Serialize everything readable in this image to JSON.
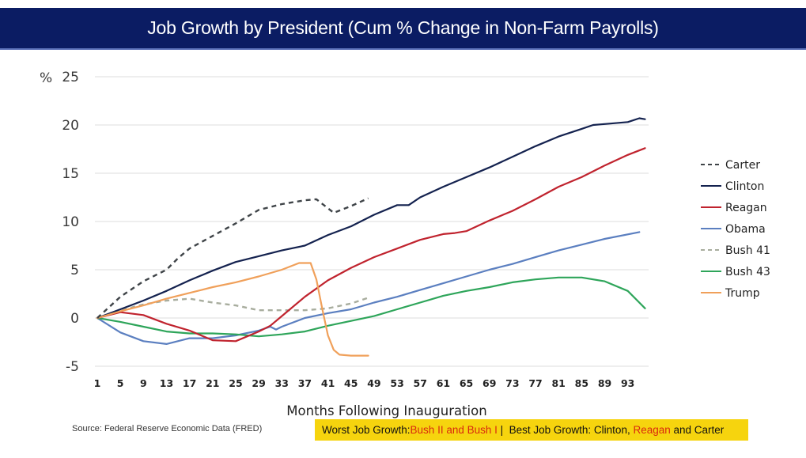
{
  "header": {
    "title": "Job Growth by President (Cum % Change in Non-Farm Payrolls)"
  },
  "chart_data": {
    "type": "line",
    "title": "Job Growth by President (Cum % Change in Non-Farm Payrolls)",
    "xlabel": "Months Following Inauguration",
    "ylabel": "%",
    "xlim": [
      1,
      96
    ],
    "ylim": [
      -5,
      25
    ],
    "grid": true,
    "legend_position": "right",
    "x_ticks": [
      "1",
      "5",
      "9",
      "13",
      "17",
      "21",
      "25",
      "29",
      "33",
      "37",
      "41",
      "45",
      "49",
      "53",
      "57",
      "61",
      "65",
      "69",
      "73",
      "77",
      "81",
      "85",
      "89",
      "93"
    ],
    "y_ticks": [
      "25",
      "20",
      "15",
      "10",
      "5",
      "0",
      "-5"
    ],
    "series": [
      {
        "name": "Carter",
        "color": "#3f4448",
        "dash": true,
        "x": [
          1,
          5,
          9,
          13,
          15,
          17,
          21,
          25,
          29,
          33,
          37,
          39,
          42,
          45,
          48
        ],
        "y": [
          0,
          2.2,
          3.8,
          5.0,
          6.2,
          7.2,
          8.5,
          9.8,
          11.2,
          11.8,
          12.2,
          12.3,
          10.9,
          11.6,
          12.4
        ]
      },
      {
        "name": "Clinton",
        "color": "#14224f",
        "dash": false,
        "x": [
          1,
          5,
          9,
          13,
          17,
          21,
          25,
          29,
          33,
          37,
          41,
          45,
          49,
          53,
          55,
          57,
          61,
          65,
          69,
          73,
          77,
          81,
          85,
          87,
          89,
          93,
          95,
          96
        ],
        "y": [
          0,
          0.9,
          1.8,
          2.8,
          3.9,
          4.9,
          5.8,
          6.4,
          7.0,
          7.5,
          8.6,
          9.5,
          10.7,
          11.7,
          11.7,
          12.5,
          13.6,
          14.6,
          15.6,
          16.7,
          17.8,
          18.8,
          19.6,
          20.0,
          20.1,
          20.3,
          20.7,
          20.6
        ]
      },
      {
        "name": "Reagan",
        "color": "#c0232e",
        "dash": false,
        "x": [
          1,
          5,
          9,
          13,
          17,
          21,
          25,
          29,
          31,
          33,
          37,
          41,
          45,
          49,
          53,
          57,
          61,
          63,
          65,
          69,
          73,
          77,
          81,
          85,
          89,
          93,
          96
        ],
        "y": [
          0,
          0.6,
          0.3,
          -0.6,
          -1.3,
          -2.3,
          -2.4,
          -1.4,
          -0.8,
          0.2,
          2.2,
          3.9,
          5.2,
          6.3,
          7.2,
          8.1,
          8.7,
          8.8,
          9.0,
          10.1,
          11.1,
          12.3,
          13.6,
          14.6,
          15.8,
          16.9,
          17.6
        ]
      },
      {
        "name": "Obama",
        "color": "#5b7fc0",
        "dash": false,
        "x": [
          1,
          5,
          9,
          13,
          17,
          21,
          25,
          29,
          31,
          32,
          33,
          37,
          41,
          45,
          49,
          53,
          57,
          61,
          65,
          69,
          73,
          77,
          81,
          85,
          89,
          95
        ],
        "y": [
          0,
          -1.5,
          -2.4,
          -2.7,
          -2.1,
          -2.1,
          -1.8,
          -1.3,
          -0.9,
          -1.2,
          -0.9,
          0.0,
          0.5,
          0.9,
          1.6,
          2.2,
          2.9,
          3.6,
          4.3,
          5.0,
          5.6,
          6.3,
          7.0,
          7.6,
          8.2,
          8.9
        ]
      },
      {
        "name": "Bush 41",
        "color": "#a8ad9e",
        "dash": true,
        "x": [
          1,
          5,
          9,
          13,
          17,
          21,
          25,
          29,
          33,
          37,
          41,
          45,
          48
        ],
        "y": [
          0,
          0.8,
          1.4,
          1.8,
          2.0,
          1.6,
          1.3,
          0.8,
          0.8,
          0.8,
          1.0,
          1.5,
          2.1
        ]
      },
      {
        "name": "Bush 43",
        "color": "#2ea55a",
        "dash": false,
        "x": [
          1,
          5,
          9,
          13,
          17,
          21,
          25,
          29,
          33,
          37,
          41,
          45,
          49,
          53,
          57,
          61,
          65,
          69,
          73,
          77,
          81,
          85,
          89,
          93,
          96
        ],
        "y": [
          0,
          -0.4,
          -0.9,
          -1.4,
          -1.6,
          -1.6,
          -1.7,
          -1.9,
          -1.7,
          -1.4,
          -0.8,
          -0.3,
          0.2,
          0.9,
          1.6,
          2.3,
          2.8,
          3.2,
          3.7,
          4.0,
          4.2,
          4.2,
          3.8,
          2.8,
          1.0
        ]
      },
      {
        "name": "Trump",
        "color": "#f0a05a",
        "dash": false,
        "x": [
          1,
          5,
          9,
          13,
          17,
          21,
          25,
          29,
          33,
          36,
          38,
          39,
          40,
          41,
          42,
          43,
          45,
          48
        ],
        "y": [
          0,
          0.7,
          1.3,
          2.0,
          2.6,
          3.2,
          3.7,
          4.3,
          5.0,
          5.7,
          5.7,
          4.0,
          1.0,
          -1.8,
          -3.3,
          -3.8,
          -3.9,
          -3.9
        ]
      }
    ]
  },
  "footer": {
    "source": "Source:  Federal Reserve Economic Data (FRED)",
    "note_worst_label": "Worst Job Growth: ",
    "note_worst_value": "Bush II and Bush I",
    "note_separator": " |  Best Job Growth: Clinton, ",
    "note_best_highlight": "Reagan",
    "note_best_tail": " and Carter"
  }
}
